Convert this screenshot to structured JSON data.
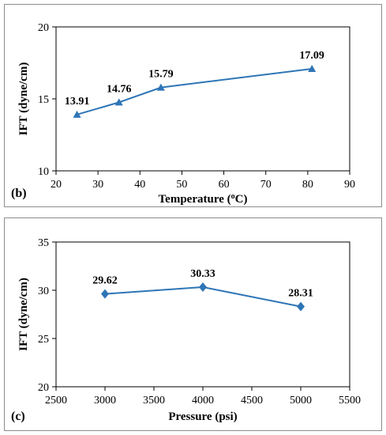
{
  "chart_data": [
    {
      "type": "line",
      "panel_tag": "(b)",
      "xlabel": "Temperature (",
      "xlabel_sup": "o",
      "xlabel_tail": "C)",
      "ylabel": "IFT (dyne/cm)",
      "xlim": [
        20,
        90
      ],
      "ylim": [
        10,
        20
      ],
      "xticks": [
        "20",
        "30",
        "40",
        "50",
        "60",
        "70",
        "80",
        "90"
      ],
      "yticks": [
        "10",
        "15",
        "20"
      ],
      "grid": false,
      "marker": "triangle",
      "color": "#2e75b6",
      "series": [
        {
          "x": [
            25,
            35,
            45,
            81
          ],
          "y": [
            13.91,
            14.76,
            15.79,
            17.09
          ],
          "labels": [
            "13.91",
            "14.76",
            "15.79",
            "17.09"
          ]
        }
      ]
    },
    {
      "type": "line",
      "panel_tag": "(c)",
      "xlabel": "Pressure (psi)",
      "ylabel": "IFT (dyne/cm)",
      "xlim": [
        2500,
        5500
      ],
      "ylim": [
        20,
        35
      ],
      "xticks": [
        "2500",
        "3000",
        "3500",
        "4000",
        "4500",
        "5000",
        "5500"
      ],
      "yticks": [
        "20",
        "25",
        "30",
        "35"
      ],
      "grid": false,
      "marker": "diamond",
      "color": "#2e75b6",
      "series": [
        {
          "x": [
            3000,
            4000,
            5000
          ],
          "y": [
            29.62,
            30.33,
            28.31
          ],
          "labels": [
            "29.62",
            "30.33",
            "28.31"
          ]
        }
      ]
    }
  ]
}
